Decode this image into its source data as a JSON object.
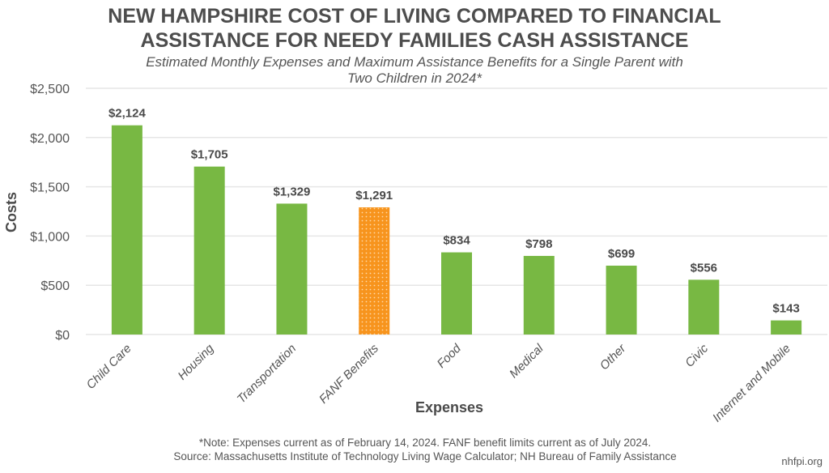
{
  "chart_data": {
    "type": "bar",
    "title": "NEW HAMPSHIRE COST OF LIVING COMPARED TO FINANCIAL ASSISTANCE FOR NEEDY FAMILIES CASH ASSISTANCE",
    "title_lines": [
      "NEW HAMPSHIRE COST OF LIVING COMPARED TO FINANCIAL",
      "ASSISTANCE FOR NEEDY FAMILIES CASH ASSISTANCE"
    ],
    "subtitle": "Estimated Monthly Expenses and Maximum Assistance Benefits for a Single Parent with Two Children in 2024*",
    "subtitle_lines": [
      "Estimated Monthly Expenses and Maximum Assistance Benefits for a Single Parent with",
      "Two Children in 2024*"
    ],
    "xlabel": "Expenses",
    "ylabel": "Costs",
    "ylim": [
      0,
      2500
    ],
    "yticks": [
      0,
      500,
      1000,
      1500,
      2000,
      2500
    ],
    "ytick_labels": [
      "$0",
      "$500",
      "$1,000",
      "$1,500",
      "$2,000",
      "$2,500"
    ],
    "grid": true,
    "legend": "none",
    "categories": [
      "Child Care",
      "Housing",
      "Transportation",
      "FANF Benefits",
      "Food",
      "Medical",
      "Other",
      "Civic",
      "Internet and Mobile"
    ],
    "values": [
      2124,
      1705,
      1329,
      1291,
      834,
      798,
      699,
      556,
      143
    ],
    "data_labels": [
      "$2,124",
      "$1,705",
      "$1,329",
      "$1,291",
      "$834",
      "$798",
      "$699",
      "$556",
      "$143"
    ],
    "highlight_category": "FANF Benefits",
    "colors": {
      "expense": "#78b843",
      "benefit": "#f7941d",
      "grid": "#e6e6e6"
    }
  },
  "footer": {
    "note": "*Note: Expenses current as of February 14, 2024. FANF benefit limits current as of July 2024.",
    "source": "Source: Massachusetts Institute of Technology Living Wage Calculator; NH Bureau of Family Assistance",
    "brand": "nhfpi.org"
  }
}
